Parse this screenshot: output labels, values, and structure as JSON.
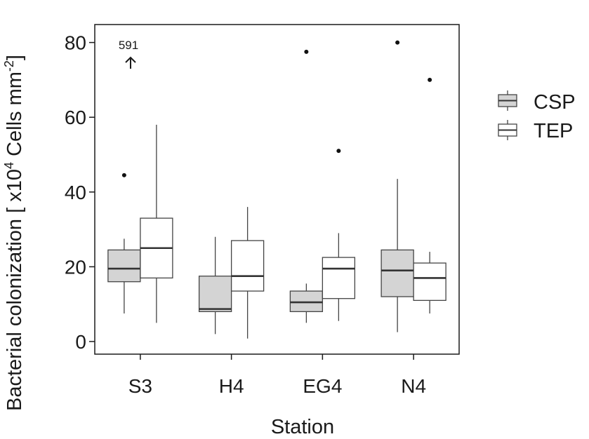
{
  "chart_data": {
    "type": "box",
    "xlabel": "Station",
    "ylabel": "Bacterial colonization [ x10",
    "ylabel_exp1": "4",
    "ylabel_mid": " Cells mm",
    "ylabel_exp2": "-2",
    "ylabel_end": "]",
    "ylim": [
      -5,
      85
    ],
    "yticks": [
      0,
      20,
      40,
      60,
      80
    ],
    "categories": [
      "S3",
      "H4",
      "EG4",
      "N4"
    ],
    "legend": {
      "position": "right",
      "entries": [
        {
          "name": "CSP",
          "fill": "#d4d4d4"
        },
        {
          "name": "TEP",
          "fill": "#ffffff"
        }
      ]
    },
    "series": [
      {
        "name": "CSP",
        "fill": "#d4d4d4",
        "boxes": [
          {
            "category": "S3",
            "whisker_low": 7.5,
            "q1": 16,
            "median": 19.5,
            "q3": 24.5,
            "whisker_high": 27.5,
            "outliers": [
              44.5
            ]
          },
          {
            "category": "H4",
            "whisker_low": 2,
            "q1": 8,
            "median": 8.7,
            "q3": 17.5,
            "whisker_high": 28,
            "outliers": []
          },
          {
            "category": "EG4",
            "whisker_low": 5,
            "q1": 8,
            "median": 10.5,
            "q3": 13.5,
            "whisker_high": 15.5,
            "outliers": [
              77.5
            ]
          },
          {
            "category": "N4",
            "whisker_low": 2.5,
            "q1": 12,
            "median": 19,
            "q3": 24.5,
            "whisker_high": 43.5,
            "outliers": [
              80
            ]
          }
        ]
      },
      {
        "name": "TEP",
        "fill": "#ffffff",
        "boxes": [
          {
            "category": "S3",
            "whisker_low": 5,
            "q1": 17,
            "median": 25,
            "q3": 33,
            "whisker_high": 58,
            "outliers": []
          },
          {
            "category": "H4",
            "whisker_low": 0.8,
            "q1": 13.5,
            "median": 17.5,
            "q3": 27,
            "whisker_high": 36,
            "outliers": []
          },
          {
            "category": "EG4",
            "whisker_low": 5.5,
            "q1": 11.5,
            "median": 19.5,
            "q3": 22.5,
            "whisker_high": 29,
            "outliers": [
              51
            ]
          },
          {
            "category": "N4",
            "whisker_low": 7.5,
            "q1": 11,
            "median": 17,
            "q3": 21,
            "whisker_high": 24,
            "outliers": [
              70
            ]
          }
        ]
      }
    ],
    "annotation": {
      "text": "591",
      "arrow": "up",
      "value": 591,
      "category": "S3",
      "series": "CSP"
    }
  }
}
